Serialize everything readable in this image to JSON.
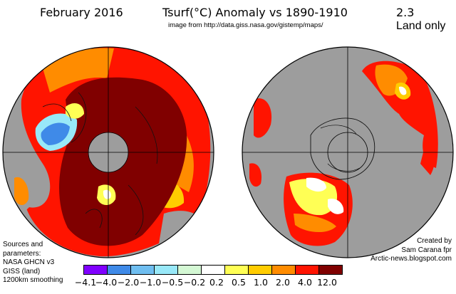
{
  "header": {
    "date": "February 2016",
    "title": "Tsurf(°C) Anomaly vs 1890-1910",
    "credit": "image from http://data.giss.nasa.gov/gistemp/maps/",
    "mean": "2.3",
    "mask": "Land only"
  },
  "sources": {
    "lines": [
      "Sources and",
      "parameters:",
      "NASA GHCN v3",
      "GISS (land)",
      "1200km smoothing"
    ]
  },
  "created": {
    "lines": [
      "Created by",
      "Sam Carana fpr",
      "Arctic-news.blogspot.com"
    ]
  },
  "maps": {
    "left_label": "Northern hemisphere polar projection",
    "right_label": "Southern hemisphere polar projection",
    "nodata_color": "#9d9d9d"
  },
  "legend": {
    "colors": [
      "#8000ff",
      "#3f8ae8",
      "#6fbef0",
      "#98e8f8",
      "#d4f8d4",
      "#ffffff",
      "#ffff55",
      "#ffcc00",
      "#ff8c00",
      "#ff1400",
      "#800000"
    ],
    "ticks": [
      "−4.1",
      "−4.0",
      "−2.0",
      "−1.0",
      "−0.5",
      "−0.2",
      "0.2",
      "0.5",
      "1.0",
      "2.0",
      "4.0",
      "12.0"
    ]
  }
}
